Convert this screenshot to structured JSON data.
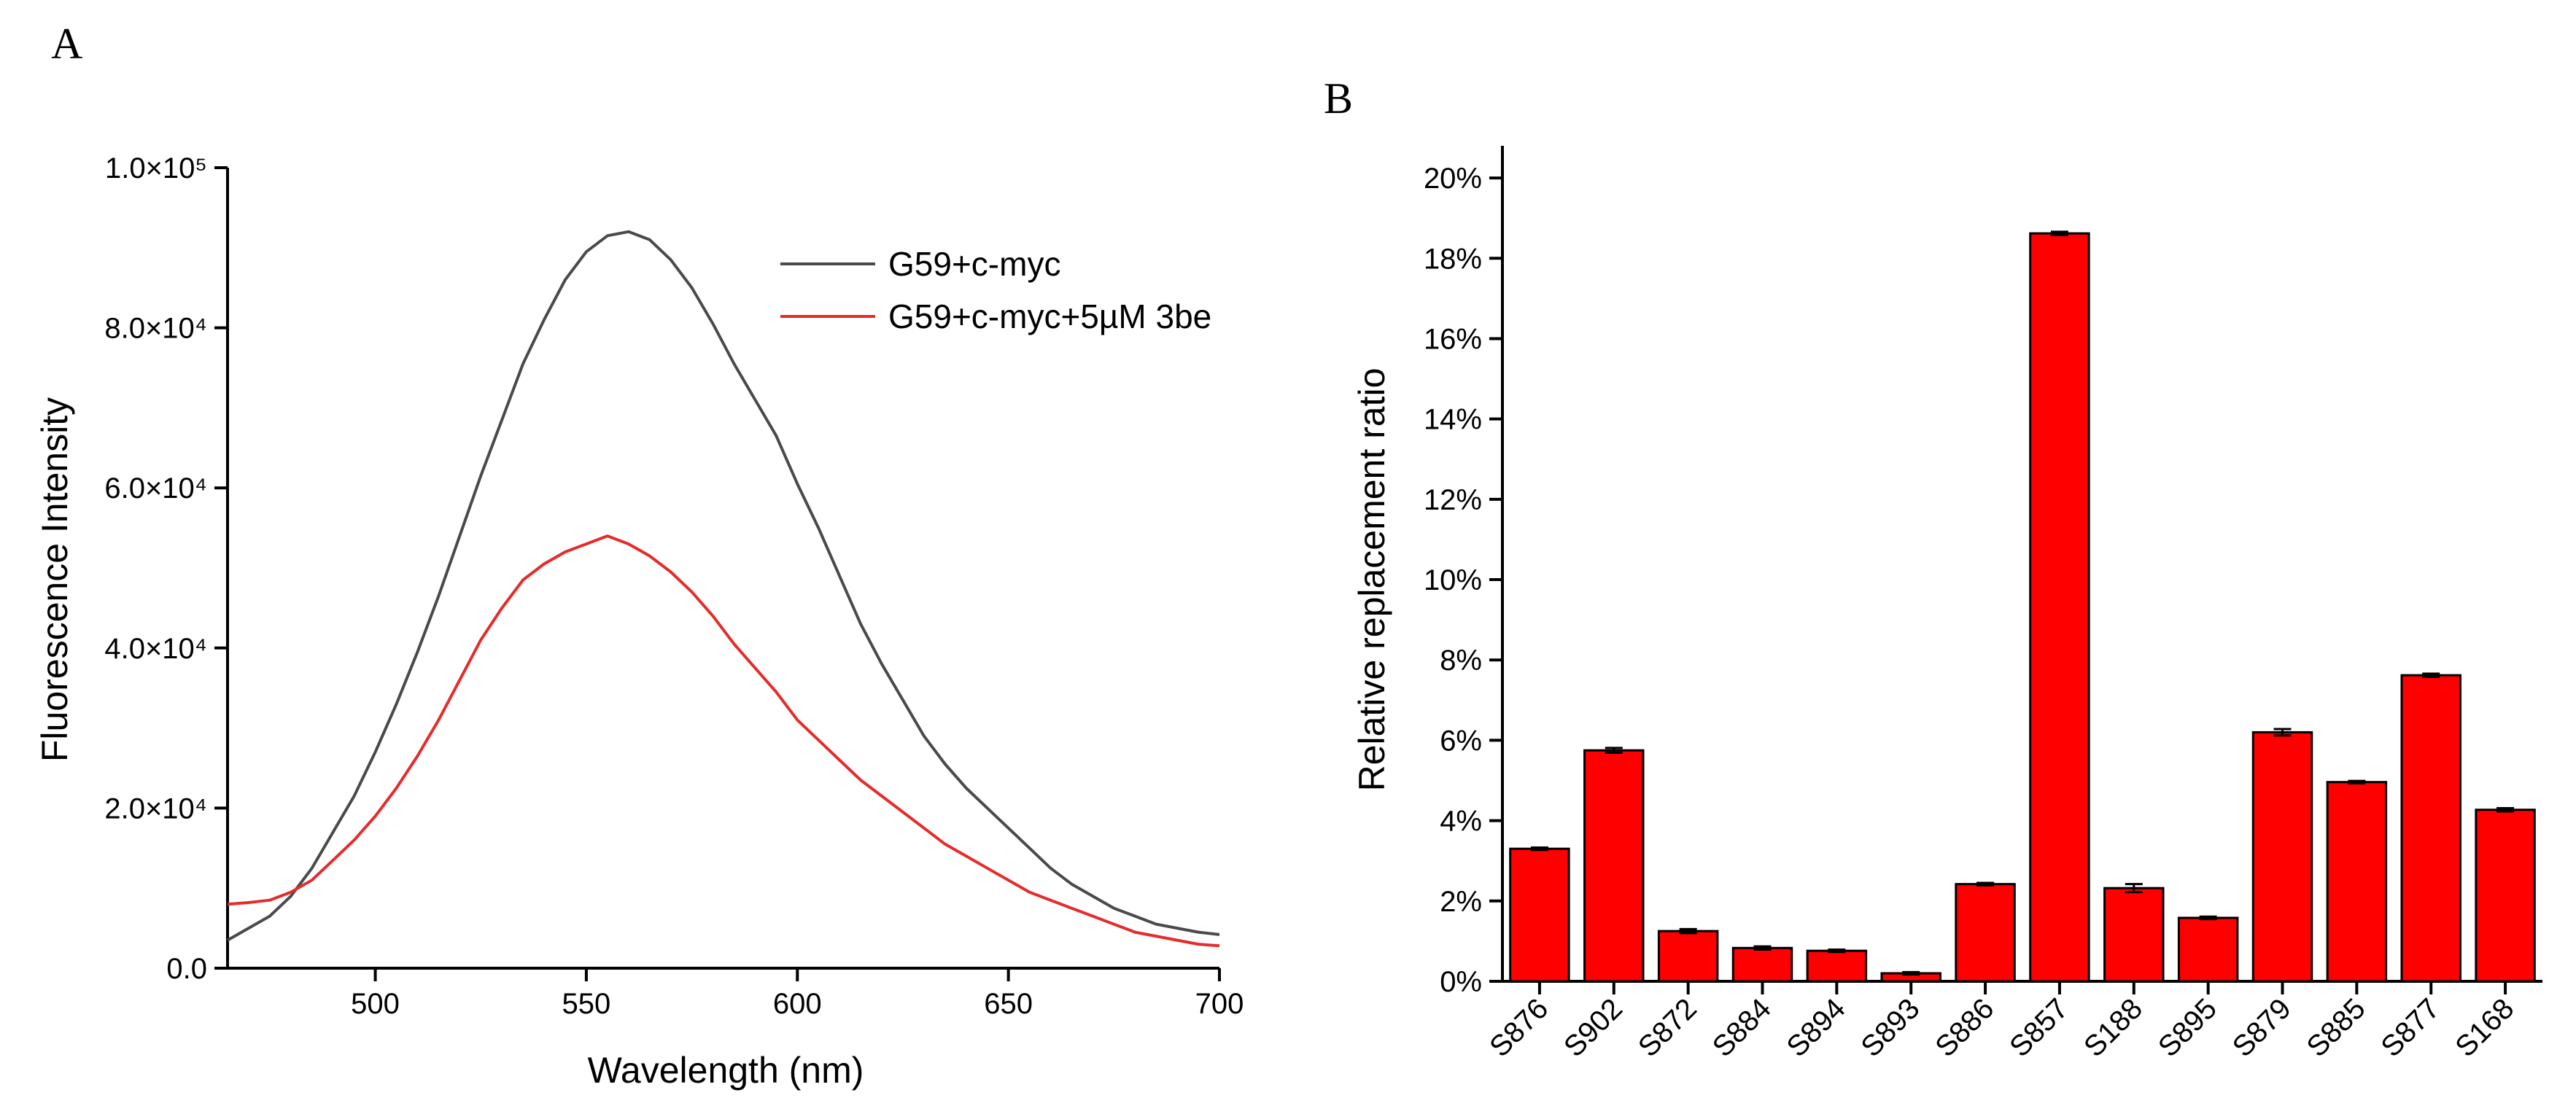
{
  "panels": {
    "a_label": "A",
    "b_label": "B"
  },
  "chart_data": [
    {
      "type": "line",
      "panel": "A",
      "xlabel": "Wavelength (nm)",
      "ylabel": "Fluorescence Intensity",
      "xlim": [
        465,
        700
      ],
      "ylim": [
        0,
        100000
      ],
      "xticks": [
        500,
        550,
        600,
        650,
        700
      ],
      "xtick_labels": [
        "500",
        "550",
        "600",
        "650",
        "700"
      ],
      "yticks": [
        0,
        20000,
        40000,
        60000,
        80000,
        100000
      ],
      "ytick_labels": [
        "0.0",
        "2.0×10⁴",
        "4.0×10⁴",
        "6.0×10⁴",
        "8.0×10⁴",
        "1.0×10⁵"
      ],
      "legend_position": "top-right",
      "grid": false,
      "series": [
        {
          "name": "G59+c-myc",
          "color": "#4a4a4a",
          "x": [
            465,
            470,
            475,
            480,
            485,
            490,
            495,
            500,
            505,
            510,
            515,
            520,
            525,
            530,
            535,
            540,
            545,
            550,
            555,
            560,
            565,
            570,
            575,
            580,
            585,
            590,
            595,
            600,
            605,
            610,
            615,
            620,
            625,
            630,
            635,
            640,
            645,
            650,
            655,
            660,
            665,
            670,
            675,
            680,
            685,
            690,
            695,
            700
          ],
          "y": [
            3500,
            5000,
            6500,
            9000,
            12500,
            17000,
            21500,
            27000,
            33000,
            39500,
            46500,
            54000,
            61500,
            68500,
            75500,
            81000,
            86000,
            89500,
            91500,
            92000,
            91000,
            88500,
            85000,
            80500,
            75500,
            71000,
            66500,
            60500,
            55000,
            49000,
            43000,
            38000,
            33500,
            29000,
            25500,
            22500,
            20000,
            17500,
            15000,
            12500,
            10500,
            9000,
            7500,
            6500,
            5500,
            5000,
            4500,
            4200
          ]
        },
        {
          "name": "G59+c-myc+5µM 3be",
          "color": "#e62b2b",
          "x": [
            465,
            470,
            475,
            480,
            485,
            490,
            495,
            500,
            505,
            510,
            515,
            520,
            525,
            530,
            535,
            540,
            545,
            550,
            555,
            560,
            565,
            570,
            575,
            580,
            585,
            590,
            595,
            600,
            605,
            610,
            615,
            620,
            625,
            630,
            635,
            640,
            645,
            650,
            655,
            660,
            665,
            670,
            675,
            680,
            685,
            690,
            695,
            700
          ],
          "y": [
            8000,
            8200,
            8500,
            9500,
            11000,
            13500,
            16000,
            19000,
            22500,
            26500,
            31000,
            36000,
            41000,
            45000,
            48500,
            50500,
            52000,
            53000,
            54000,
            53000,
            51500,
            49500,
            47000,
            44000,
            40500,
            37500,
            34500,
            31000,
            28500,
            26000,
            23500,
            21500,
            19500,
            17500,
            15500,
            14000,
            12500,
            11000,
            9500,
            8500,
            7500,
            6500,
            5500,
            4500,
            4000,
            3500,
            3000,
            2800
          ]
        }
      ]
    },
    {
      "type": "bar",
      "panel": "B",
      "xlabel": "",
      "ylabel": "Relative replacement ratio",
      "ylim": [
        0,
        20.8
      ],
      "yticks": [
        0,
        2,
        4,
        6,
        8,
        10,
        12,
        14,
        16,
        18,
        20
      ],
      "ytick_labels": [
        "0%",
        "2%",
        "4%",
        "6%",
        "8%",
        "10%",
        "12%",
        "14%",
        "16%",
        "18%",
        "20%"
      ],
      "bar_color": "#ff0000",
      "grid": false,
      "categories": [
        "S876",
        "S902",
        "S872",
        "S884",
        "S894",
        "S893",
        "S886",
        "S857",
        "S188",
        "S895",
        "S879",
        "S885",
        "S877",
        "S168"
      ],
      "values": [
        3.3,
        5.75,
        1.25,
        0.83,
        0.76,
        0.2,
        2.42,
        18.62,
        2.32,
        1.58,
        6.2,
        4.96,
        7.62,
        4.27
      ],
      "errors": [
        0.03,
        0.06,
        0.05,
        0.04,
        0.03,
        0.03,
        0.03,
        0.04,
        0.1,
        0.03,
        0.08,
        0.03,
        0.04,
        0.04
      ]
    }
  ]
}
